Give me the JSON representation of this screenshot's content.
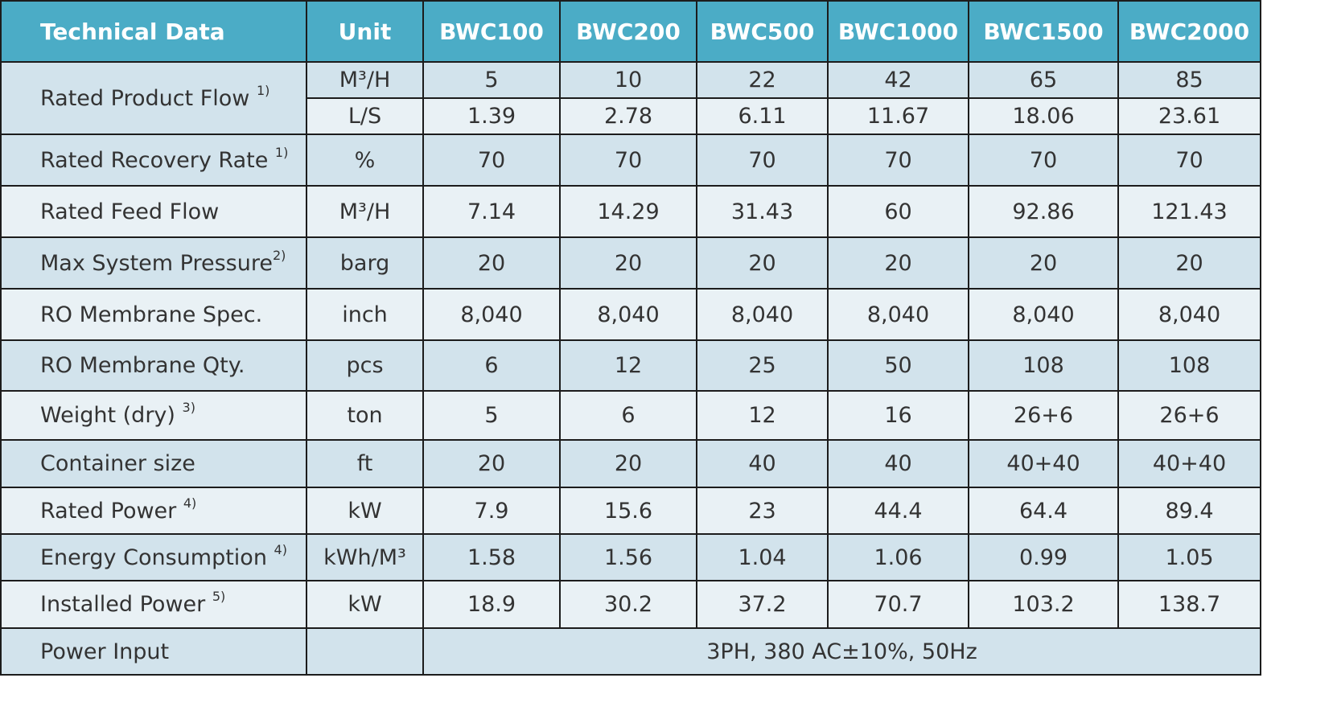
{
  "table": {
    "header": {
      "param": "Technical Data",
      "unit": "Unit",
      "models": [
        "BWC100",
        "BWC200",
        "BWC500",
        "BWC1000",
        "BWC1500",
        "BWC2000"
      ]
    },
    "rows": [
      {
        "param": "Rated Product Flow",
        "note": "1)",
        "units": [
          "M³/H",
          "L/S"
        ],
        "values": [
          [
            "5",
            "10",
            "22",
            "42",
            "65",
            "85"
          ],
          [
            "1.39",
            "2.78",
            "6.11",
            "11.67",
            "18.06",
            "23.61"
          ]
        ]
      },
      {
        "param": "Rated Recovery Rate",
        "note": "1)",
        "unit": "%",
        "values": [
          "70",
          "70",
          "70",
          "70",
          "70",
          "70"
        ]
      },
      {
        "param": "Rated Feed Flow",
        "note": "",
        "unit": "M³/H",
        "values": [
          "7.14",
          "14.29",
          "31.43",
          "60",
          "92.86",
          "121.43"
        ]
      },
      {
        "param": "Max System Pressure",
        "note": "2)",
        "unit": "barg",
        "values": [
          "20",
          "20",
          "20",
          "20",
          "20",
          "20"
        ]
      },
      {
        "param": "RO Membrane Spec.",
        "note": "",
        "unit": "inch",
        "values": [
          "8,040",
          "8,040",
          "8,040",
          "8,040",
          "8,040",
          "8,040"
        ]
      },
      {
        "param": "RO Membrane Qty.",
        "note": "",
        "unit": "pcs",
        "values": [
          "6",
          "12",
          "25",
          "50",
          "108",
          "108"
        ]
      },
      {
        "param": "Weight (dry)",
        "note": "3)",
        "unit": "ton",
        "values": [
          "5",
          "6",
          "12",
          "16",
          "26+6",
          "26+6"
        ]
      },
      {
        "param": "Container size",
        "note": "",
        "unit": "ft",
        "values": [
          "20",
          "20",
          "40",
          "40",
          "40+40",
          "40+40"
        ]
      },
      {
        "param": "Rated Power",
        "note": "4)",
        "unit": "kW",
        "values": [
          "7.9",
          "15.6",
          "23",
          "44.4",
          "64.4",
          "89.4"
        ]
      },
      {
        "param": "Energy Consumption",
        "note": "4)",
        "unit": "kWh/M³",
        "values": [
          "1.58",
          "1.56",
          "1.04",
          "1.06",
          "0.99",
          "1.05"
        ]
      },
      {
        "param": "Installed Power",
        "note": "5)",
        "unit": "kW",
        "values": [
          "18.9",
          "30.2",
          "37.2",
          "70.7",
          "103.2",
          "138.7"
        ]
      }
    ],
    "power_input": {
      "param": "Power Input",
      "unit": "",
      "value": "3PH, 380 AC±10%, 50Hz"
    }
  },
  "colors": {
    "header_bg": "#4bacc6",
    "row_dark": "#d2e3ec",
    "row_light": "#e9f1f5",
    "border": "#1c1c1c"
  }
}
